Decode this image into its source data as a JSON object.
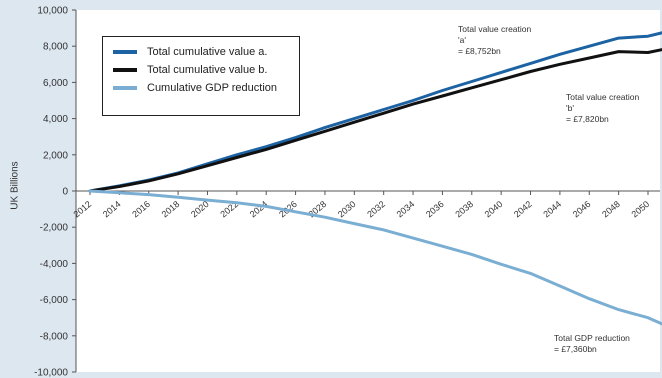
{
  "chart_data": {
    "type": "line",
    "ylabel": "UK Billions",
    "xlabel": "",
    "ylim": [
      -10000,
      10000
    ],
    "yticks": [
      10000,
      8000,
      6000,
      4000,
      2000,
      0,
      -2000,
      -4000,
      -6000,
      -8000,
      -10000
    ],
    "ytick_labels": [
      "10,000",
      "8,000",
      "6,000",
      "4,000",
      "2,000",
      "0",
      "-2,000",
      "-4,000",
      "-6,000",
      "-8,000",
      "-10,000"
    ],
    "xlim": [
      2012,
      2051
    ],
    "xtick_labels": [
      "2012",
      "2014",
      "2016",
      "2018",
      "2020",
      "2022",
      "2024",
      "2026",
      "2028",
      "2030",
      "2032",
      "2034",
      "2036",
      "2038",
      "2040",
      "2042",
      "2044",
      "2046",
      "2048",
      "2050"
    ],
    "x": [
      2012,
      2014,
      2016,
      2018,
      2020,
      2022,
      2024,
      2026,
      2028,
      2030,
      2032,
      2034,
      2036,
      2038,
      2040,
      2042,
      2044,
      2046,
      2048,
      2050,
      2051
    ],
    "series": [
      {
        "name": "Total cumulative value a.",
        "color": "#1d63a3",
        "values": [
          0,
          280,
          600,
          1000,
          1500,
          2000,
          2450,
          2950,
          3500,
          4000,
          4500,
          5000,
          5550,
          6050,
          6550,
          7050,
          7550,
          8000,
          8450,
          8550,
          8752
        ]
      },
      {
        "name": "Total cumulative value b.",
        "color": "#111111",
        "values": [
          0,
          250,
          560,
          950,
          1400,
          1850,
          2300,
          2800,
          3300,
          3800,
          4300,
          4800,
          5250,
          5700,
          6150,
          6600,
          7000,
          7350,
          7700,
          7650,
          7820
        ]
      },
      {
        "name": "Cumulative GDP reduction",
        "color": "#7aaed3",
        "values": [
          0,
          -100,
          -200,
          -350,
          -500,
          -650,
          -850,
          -1150,
          -1450,
          -1800,
          -2150,
          -2600,
          -3050,
          -3500,
          -4050,
          -4550,
          -5250,
          -5950,
          -6550,
          -7000,
          -7360
        ]
      }
    ],
    "legend_position": "top-left",
    "annotations": [
      {
        "lines": [
          "Total value creation",
          "'a'",
          "= £8,752bn"
        ]
      },
      {
        "lines": [
          "Total value creation",
          "'b'",
          "= £7,820bn"
        ]
      },
      {
        "lines": [
          "Total GDP reduction",
          "= £7,360bn"
        ]
      }
    ],
    "grid": false
  }
}
